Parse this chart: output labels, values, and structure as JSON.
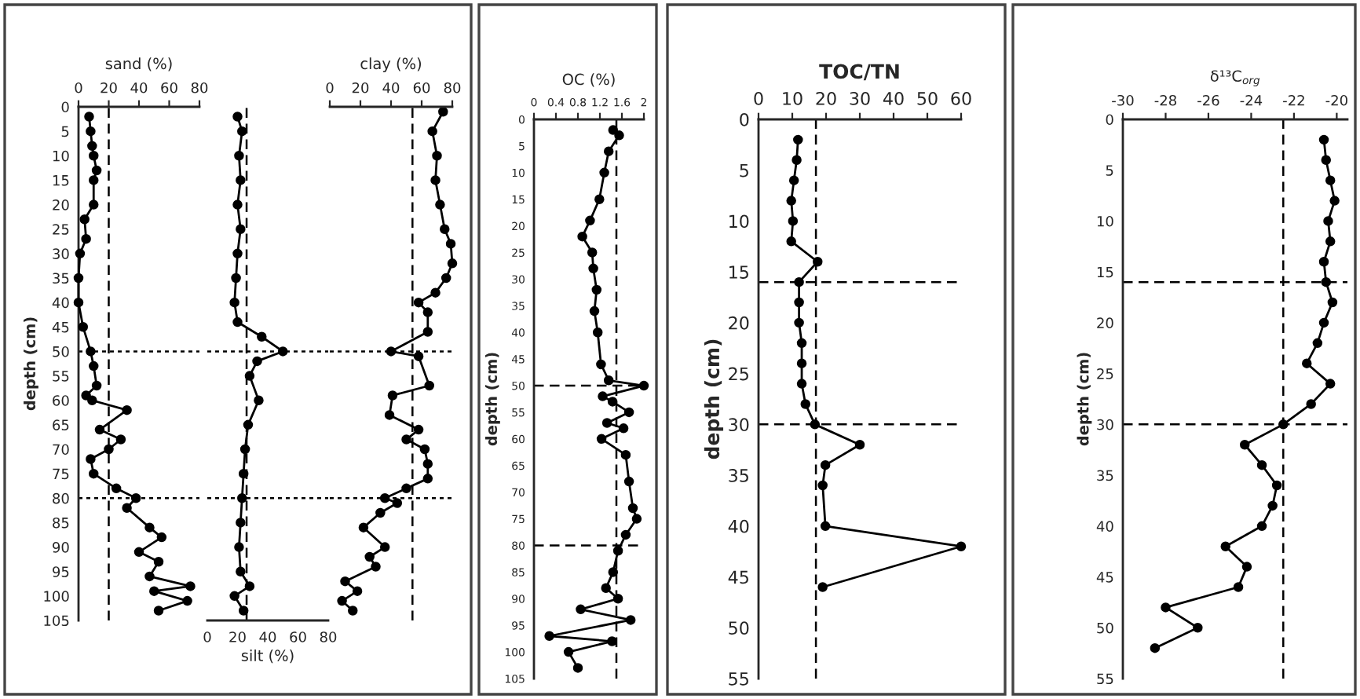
{
  "chart_data": [
    {
      "type": "line",
      "orientation": "horizontal",
      "x2label": "sand (%)",
      "ylabel": "depth (cm)",
      "x2lim": [
        0,
        80
      ],
      "x2ticks": [
        0,
        20,
        40,
        60,
        80
      ],
      "ylim": [
        105,
        0
      ],
      "yticks": [
        0,
        5,
        10,
        15,
        20,
        25,
        30,
        35,
        40,
        45,
        50,
        55,
        60,
        65,
        70,
        75,
        80,
        85,
        90,
        95,
        100,
        105
      ],
      "marker": "circle",
      "grid": false,
      "series": [
        {
          "color": "#000000",
          "axis": "x2",
          "x": [
            2,
            5,
            8,
            10,
            13,
            15,
            20,
            23,
            27,
            30,
            35,
            40,
            45,
            50,
            53,
            57,
            59,
            60,
            62,
            66,
            68,
            70,
            72,
            75,
            78,
            80,
            82,
            86,
            88,
            91,
            93,
            96,
            98,
            99,
            101,
            103
          ],
          "values": [
            7,
            8,
            9,
            10,
            12,
            10,
            10,
            4,
            5,
            1,
            0,
            0,
            3,
            8,
            10,
            12,
            5,
            9,
            32,
            14,
            28,
            20,
            8,
            10,
            25,
            38,
            32,
            47,
            55,
            40,
            53,
            47,
            74,
            50,
            72,
            53
          ]
        }
      ],
      "ref_lines": [
        {
          "axis": "x2",
          "value": 20,
          "line_style": "dashed",
          "color": "#000000"
        },
        {
          "axis": "y",
          "value": 50,
          "line_style": "dotted",
          "color": "#000000"
        },
        {
          "axis": "y",
          "value": 80,
          "line_style": "dotted",
          "color": "#000000"
        }
      ]
    },
    {
      "type": "line",
      "orientation": "horizontal",
      "xlabel": "silt (%)",
      "xlim": [
        0,
        80
      ],
      "xticks": [
        0,
        20,
        40,
        60,
        80
      ],
      "ylim": [
        105,
        0
      ],
      "tick_labels": "x",
      "marker": "circle",
      "grid": false,
      "series": [
        {
          "color": "#000000",
          "x": [
            2,
            5,
            10,
            15,
            20,
            25,
            30,
            35,
            40,
            44,
            47,
            50,
            52,
            55,
            60,
            65,
            70,
            75,
            80,
            85,
            90,
            95,
            98,
            100,
            103
          ],
          "values": [
            20,
            23,
            21,
            22,
            20,
            22,
            20,
            19,
            18,
            20,
            36,
            50,
            33,
            28,
            34,
            27,
            25,
            24,
            23,
            22,
            21,
            22,
            28,
            18,
            24
          ]
        }
      ],
      "ref_lines": [
        {
          "axis": "x",
          "value": 26,
          "line_style": "dashed",
          "color": "#000000"
        },
        {
          "axis": "y",
          "value": 50,
          "line_style": "dotted",
          "color": "#000000"
        },
        {
          "axis": "y",
          "value": 80,
          "line_style": "dotted",
          "color": "#000000"
        }
      ]
    },
    {
      "type": "line",
      "orientation": "horizontal",
      "x2label": "clay (%)",
      "x2lim": [
        0,
        80
      ],
      "x2ticks": [
        0,
        20,
        40,
        60,
        80
      ],
      "ylim": [
        105,
        0
      ],
      "tick_labels": "x",
      "marker": "circle",
      "grid": false,
      "series": [
        {
          "color": "#000000",
          "axis": "x2",
          "x": [
            1,
            5,
            10,
            15,
            20,
            25,
            28,
            32,
            35,
            38,
            40,
            42,
            46,
            50,
            51,
            57,
            59,
            63,
            66,
            68,
            70,
            73,
            76,
            78,
            80,
            81,
            83,
            86,
            90,
            92,
            94,
            97,
            99,
            101,
            103
          ],
          "values": [
            74,
            67,
            70,
            69,
            72,
            75,
            79,
            80,
            76,
            69,
            58,
            64,
            64,
            40,
            58,
            65,
            41,
            39,
            58,
            50,
            62,
            64,
            64,
            50,
            36,
            44,
            33,
            22,
            36,
            26,
            30,
            10,
            18,
            8,
            15
          ]
        }
      ],
      "ref_lines": [
        {
          "axis": "x2",
          "value": 54,
          "line_style": "dashed",
          "color": "#000000"
        },
        {
          "axis": "y",
          "value": 50,
          "line_style": "dotted",
          "color": "#000000"
        },
        {
          "axis": "y",
          "value": 80,
          "line_style": "dotted",
          "color": "#000000"
        }
      ]
    },
    {
      "type": "line",
      "orientation": "horizontal",
      "x2label": "OC (%)",
      "ylabel": "depth (cm)",
      "x2lim": [
        0,
        2
      ],
      "x2ticks": [
        0,
        0.4,
        0.8,
        1.2,
        1.6,
        2
      ],
      "ylim": [
        105,
        0
      ],
      "yticks": [
        0,
        5,
        10,
        15,
        20,
        25,
        30,
        35,
        40,
        45,
        50,
        55,
        60,
        65,
        70,
        75,
        80,
        85,
        90,
        95,
        100,
        105
      ],
      "marker": "circle",
      "grid": false,
      "series": [
        {
          "color": "#000000",
          "axis": "x2",
          "x": [
            2,
            3,
            6,
            10,
            15,
            19,
            22,
            25,
            28,
            32,
            36,
            40,
            46,
            49,
            50,
            52,
            53,
            55,
            57,
            58,
            60,
            63,
            68,
            73,
            75,
            78,
            81,
            85,
            88,
            90,
            92,
            94,
            97,
            98,
            100,
            103
          ],
          "values": [
            1.44,
            1.55,
            1.36,
            1.28,
            1.19,
            1.02,
            0.88,
            1.06,
            1.08,
            1.14,
            1.1,
            1.16,
            1.22,
            1.36,
            2.0,
            1.25,
            1.43,
            1.73,
            1.33,
            1.63,
            1.23,
            1.67,
            1.73,
            1.8,
            1.87,
            1.67,
            1.53,
            1.44,
            1.31,
            1.53,
            0.85,
            1.76,
            0.28,
            1.42,
            0.63,
            0.8
          ]
        }
      ],
      "ref_lines": [
        {
          "axis": "x2",
          "value": 1.5,
          "line_style": "dashed",
          "color": "#000000"
        },
        {
          "axis": "y",
          "value": 50,
          "line_style": "dashed",
          "color": "#000000"
        },
        {
          "axis": "y",
          "value": 80,
          "line_style": "dashed",
          "color": "#000000"
        }
      ]
    },
    {
      "type": "line",
      "orientation": "horizontal",
      "x2label": "TOC/TN",
      "ylabel": "depth (cm)",
      "x2lim": [
        0,
        60
      ],
      "x2ticks": [
        0,
        10,
        20,
        30,
        40,
        50,
        60
      ],
      "ylim": [
        55,
        0
      ],
      "yticks": [
        0,
        5,
        10,
        15,
        20,
        25,
        30,
        35,
        40,
        45,
        50,
        55
      ],
      "marker": "circle",
      "grid": false,
      "series": [
        {
          "color": "#000000",
          "axis": "x2",
          "x": [
            2,
            4,
            6,
            8,
            10,
            12,
            14,
            16,
            18,
            20,
            22,
            24,
            26,
            28,
            30,
            32,
            34,
            36,
            40,
            42,
            46
          ],
          "values": [
            11.7,
            11.3,
            10.5,
            9.7,
            10.2,
            9.7,
            17.5,
            12,
            12,
            12,
            12.8,
            12.8,
            12.8,
            13.9,
            16.7,
            30,
            19.8,
            19,
            19.8,
            60,
            19
          ]
        }
      ],
      "ref_lines": [
        {
          "axis": "x2",
          "value": 17,
          "line_style": "dashed",
          "color": "#000000"
        },
        {
          "axis": "y",
          "value": 16,
          "line_style": "dashed",
          "color": "#000000"
        },
        {
          "axis": "y",
          "value": 30,
          "line_style": "dashed",
          "color": "#000000"
        }
      ]
    },
    {
      "type": "line",
      "orientation": "horizontal",
      "x2label": "δ¹³C$_{org}$",
      "ylabel": "depth (cm)",
      "x2lim": [
        -30,
        -19.5
      ],
      "x2ticks": [
        -30,
        -28,
        -26,
        -24,
        -22,
        -20
      ],
      "ylim": [
        55,
        0
      ],
      "yticks": [
        0,
        5,
        10,
        15,
        20,
        25,
        30,
        35,
        40,
        45,
        50,
        55
      ],
      "marker": "circle",
      "grid": false,
      "series": [
        {
          "color": "#000000",
          "axis": "x2",
          "x": [
            2,
            4,
            6,
            8,
            10,
            12,
            14,
            16,
            18,
            20,
            22,
            24,
            26,
            28,
            30,
            32,
            34,
            36,
            38,
            40,
            42,
            44,
            46,
            48,
            50,
            52
          ],
          "values": [
            -20.6,
            -20.5,
            -20.3,
            -20.1,
            -20.4,
            -20.3,
            -20.6,
            -20.5,
            -20.2,
            -20.6,
            -20.9,
            -21.4,
            -20.3,
            -21.2,
            -22.5,
            -24.3,
            -23.5,
            -22.8,
            -23.0,
            -23.5,
            -25.2,
            -24.2,
            -24.6,
            -28.0,
            -26.5,
            -28.5
          ]
        }
      ],
      "ref_lines": [
        {
          "axis": "x2",
          "value": -22.5,
          "line_style": "dashed",
          "color": "#000000"
        },
        {
          "axis": "y",
          "value": 16,
          "line_style": "dashed",
          "color": "#000000"
        },
        {
          "axis": "y",
          "value": 30,
          "line_style": "dashed",
          "color": "#000000"
        }
      ]
    }
  ]
}
